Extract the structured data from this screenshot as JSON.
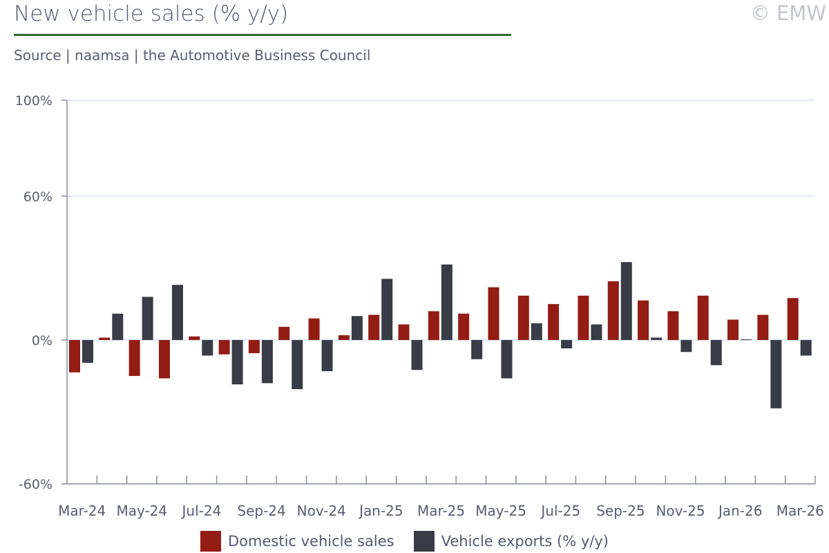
{
  "header": {
    "title": "New vehicle sales (% y/y)",
    "copyright": "© EMW",
    "source": "Source | naamsa | the Automotive Business Council"
  },
  "colors": {
    "domestic": "#931c14",
    "exports": "#393c46",
    "grid": "#d8e3ec",
    "accent": "#2e6b2e"
  },
  "chart_data": {
    "type": "bar",
    "title": "New vehicle sales (% y/y)",
    "categories": [
      "Mar-24",
      "Apr-24",
      "May-24",
      "Jun-24",
      "Jul-24",
      "Aug-24",
      "Sep-24",
      "Oct-24",
      "Nov-24",
      "Dec-24",
      "Jan-25",
      "Feb-25",
      "Mar-25",
      "Apr-25",
      "May-25",
      "Jun-25",
      "Jul-25",
      "Aug-25",
      "Sep-25",
      "Oct-25",
      "Nov-25",
      "Dec-25",
      "Jan-26",
      "Feb-26",
      "Mar-26"
    ],
    "series": [
      {
        "name": "Domestic vehicle sales",
        "values": [
          -13.5,
          1,
          -15,
          -16,
          1.5,
          -6,
          -5.5,
          5.5,
          9,
          2,
          10.5,
          6.5,
          12,
          11,
          22,
          18.5,
          15,
          18.5,
          24.5,
          16.5,
          12,
          18.5,
          8.5,
          10.5,
          17.5
        ]
      },
      {
        "name": "Vehicle exports (% y/y)",
        "values": [
          -9.5,
          11,
          18,
          23,
          -6.5,
          -18.5,
          -18,
          -20.5,
          -13,
          10,
          25.5,
          -12.5,
          31.5,
          -8,
          -16,
          7,
          -3.5,
          6.5,
          32.5,
          1,
          -5,
          -10.5,
          0.3,
          -28.5,
          -6.5
        ]
      }
    ],
    "x_tick_labels": [
      "Mar-24",
      "May-24",
      "Jul-24",
      "Sep-24",
      "Nov-24",
      "Jan-25",
      "Mar-25",
      "May-25",
      "Jul-25",
      "Sep-25",
      "Nov-25",
      "Jan-26",
      "Mar-26"
    ],
    "y_tick_labels": [
      "100%",
      "60%",
      "0%",
      "-60%"
    ],
    "y_ticks": [
      100,
      60,
      0,
      -60
    ],
    "ylim": [
      -60,
      100
    ],
    "legend": "bottom",
    "grid": true
  }
}
